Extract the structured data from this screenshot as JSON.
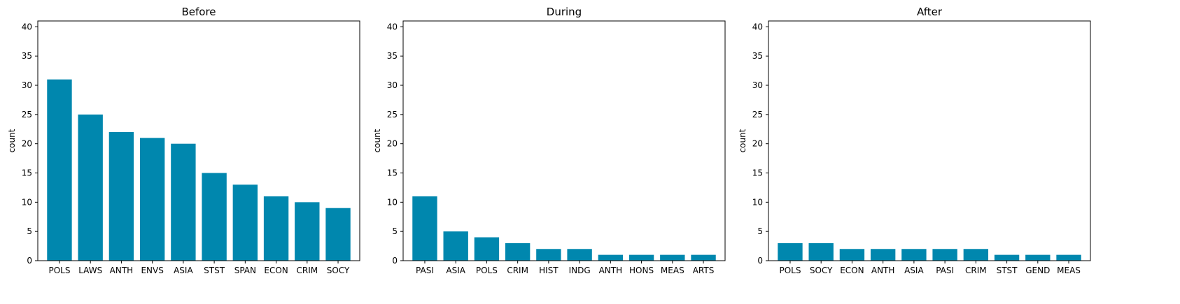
{
  "chart_data": [
    {
      "type": "bar",
      "title": "Before",
      "xlabel": "",
      "ylabel": "count",
      "ylim": [
        0,
        41
      ],
      "yticks": [
        0,
        5,
        10,
        15,
        20,
        25,
        30,
        35,
        40
      ],
      "categories": [
        "POLS",
        "LAWS",
        "ANTH",
        "ENVS",
        "ASIA",
        "STST",
        "SPAN",
        "ECON",
        "CRIM",
        "SOCY"
      ],
      "values": [
        31,
        25,
        22,
        21,
        20,
        15,
        13,
        11,
        10,
        9
      ],
      "color": "#0087ae",
      "grid": false
    },
    {
      "type": "bar",
      "title": "During",
      "xlabel": "",
      "ylabel": "count",
      "ylim": [
        0,
        41
      ],
      "yticks": [
        0,
        5,
        10,
        15,
        20,
        25,
        30,
        35,
        40
      ],
      "categories": [
        "PASI",
        "ASIA",
        "POLS",
        "CRIM",
        "HIST",
        "INDG",
        "ANTH",
        "HONS",
        "MEAS",
        "ARTS"
      ],
      "values": [
        11,
        5,
        4,
        3,
        2,
        2,
        1,
        1,
        1,
        1
      ],
      "color": "#0087ae",
      "grid": false
    },
    {
      "type": "bar",
      "title": "After",
      "xlabel": "",
      "ylabel": "count",
      "ylim": [
        0,
        41
      ],
      "yticks": [
        0,
        5,
        10,
        15,
        20,
        25,
        30,
        35,
        40
      ],
      "categories": [
        "POLS",
        "SOCY",
        "ECON",
        "ANTH",
        "ASIA",
        "PASI",
        "CRIM",
        "STST",
        "GEND",
        "MEAS"
      ],
      "values": [
        3,
        3,
        2,
        2,
        2,
        2,
        2,
        1,
        1,
        1
      ],
      "color": "#0087ae",
      "grid": false
    }
  ]
}
